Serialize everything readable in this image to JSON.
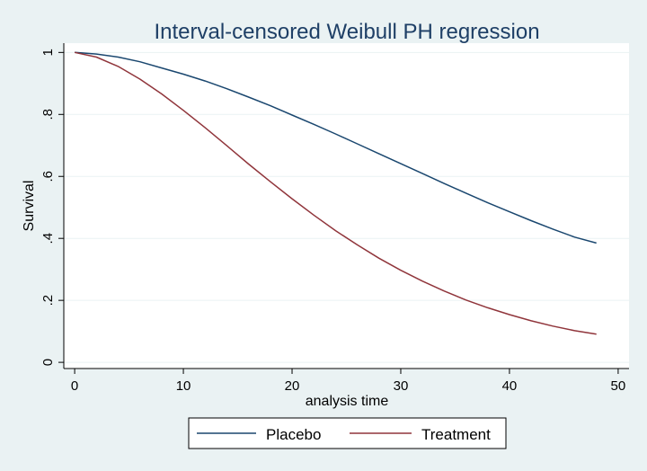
{
  "chart_data": {
    "type": "line",
    "title": "Interval-censored Weibull PH regression",
    "xlabel": "analysis time",
    "ylabel": "Survival",
    "xlim": [
      -1,
      51
    ],
    "ylim": [
      -0.02,
      1.03
    ],
    "x_ticks": [
      0,
      10,
      20,
      30,
      40,
      50
    ],
    "x_tick_labels": [
      "0",
      "10",
      "20",
      "30",
      "40",
      "50"
    ],
    "y_ticks": [
      0,
      0.2,
      0.4,
      0.6,
      0.8,
      1
    ],
    "y_tick_labels": [
      "0",
      ".2",
      ".4",
      ".6",
      ".8",
      "1"
    ],
    "grid": true,
    "legend_position": "bottom",
    "x": [
      0,
      2,
      4,
      6,
      8,
      10,
      12,
      14,
      16,
      18,
      20,
      22,
      24,
      26,
      28,
      30,
      32,
      34,
      36,
      38,
      40,
      42,
      44,
      46,
      48
    ],
    "series": [
      {
        "name": "Placebo",
        "color": "#1a476f",
        "values": [
          1.0,
          0.995,
          0.985,
          0.97,
          0.95,
          0.93,
          0.908,
          0.883,
          0.856,
          0.828,
          0.798,
          0.768,
          0.737,
          0.705,
          0.673,
          0.641,
          0.609,
          0.577,
          0.546,
          0.515,
          0.486,
          0.457,
          0.43,
          0.404,
          0.385
        ]
      },
      {
        "name": "Treatment",
        "color": "#90353b",
        "values": [
          1.0,
          0.985,
          0.955,
          0.914,
          0.866,
          0.813,
          0.757,
          0.699,
          0.64,
          0.583,
          0.528,
          0.475,
          0.425,
          0.379,
          0.336,
          0.297,
          0.262,
          0.23,
          0.201,
          0.176,
          0.154,
          0.134,
          0.117,
          0.102,
          0.091
        ]
      }
    ]
  }
}
